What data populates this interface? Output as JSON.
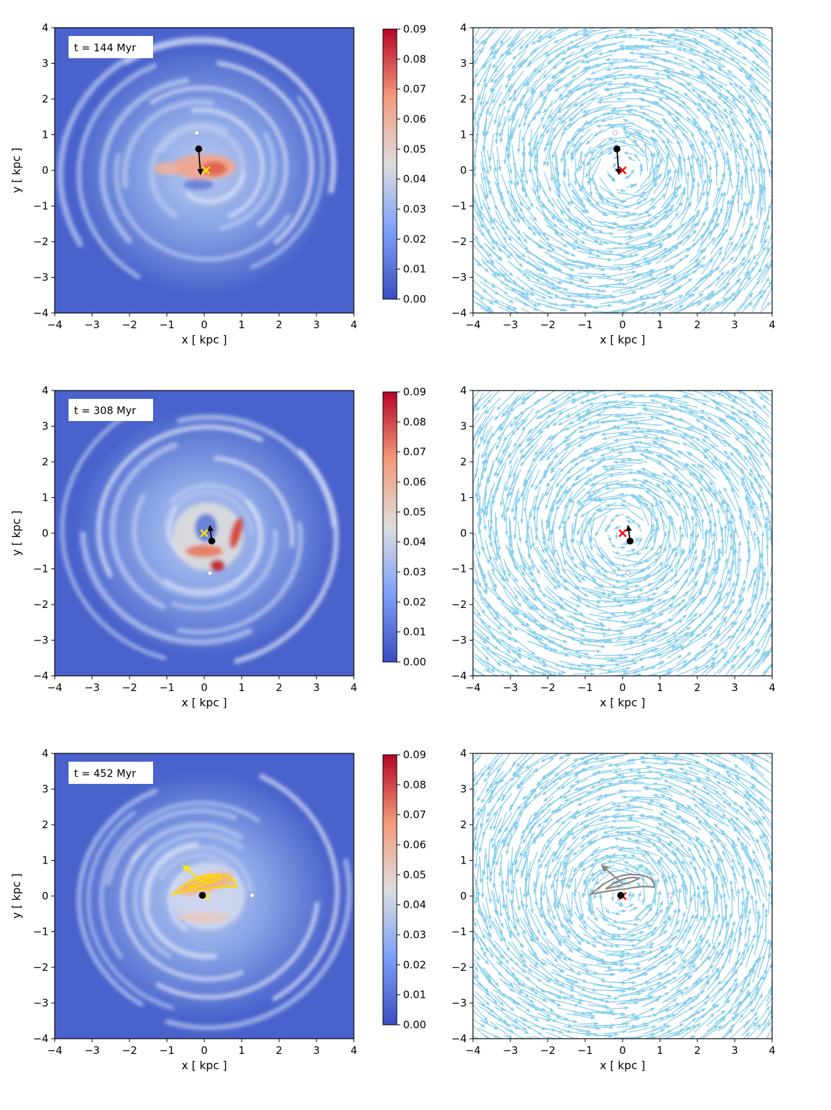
{
  "figure": {
    "rows": 3,
    "columns": 2
  },
  "colors": {
    "quiver": "#87ceeb",
    "cmap_low": "#3b4cc0",
    "cmap_mid": "#dddddd",
    "cmap_high": "#b40426",
    "frame": "#000000",
    "current_position": "#000000",
    "previous_position_marker": "#ffffff",
    "left_target_marker": "#ffe600",
    "right_target_marker": "#ff0000",
    "contour_left": "#ffd700",
    "contour_right": "#888888"
  },
  "axis_labels": {
    "x": "x [ kpc ]",
    "y": "y [ kpc ]"
  },
  "colorbar": {
    "range": [
      0.0,
      0.09
    ],
    "ticks": [
      "0.00",
      "0.01",
      "0.02",
      "0.03",
      "0.04",
      "0.05",
      "0.06",
      "0.07",
      "0.08",
      "0.09"
    ]
  },
  "chart_data": [
    {
      "type": "heatmap",
      "panel": "row 1 left",
      "annotation": "t = 144 Myr",
      "xlabel": "x [ kpc ]",
      "ylabel": "y [ kpc ]",
      "xlim": [
        -4,
        4
      ],
      "ylim": [
        -4,
        4
      ],
      "xticks": [
        "−4",
        "−3",
        "−2",
        "−1",
        "0",
        "1",
        "2",
        "3",
        "4"
      ],
      "yticks": [
        "−4",
        "−3",
        "−2",
        "−1",
        "0",
        "1",
        "2",
        "3",
        "4"
      ],
      "center": [
        -0.15,
        0.6
      ],
      "previous_center": [
        -0.2,
        1.05
      ],
      "target": [
        0.05,
        0.0
      ],
      "vector": [
        0.05,
        -0.7
      ],
      "colorbar_range": [
        0.0,
        0.09
      ],
      "spiral_sense": 1
    },
    {
      "type": "quiver",
      "panel": "row 1 right",
      "xlabel": "x [ kpc ]",
      "xlim": [
        -4,
        4
      ],
      "ylim": [
        -4,
        4
      ],
      "xticks": [
        "−4",
        "−3",
        "−2",
        "−1",
        "0",
        "1",
        "2",
        "3",
        "4"
      ],
      "yticks": [
        "−4",
        "−3",
        "−2",
        "−1",
        "0",
        "1",
        "2",
        "3",
        "4"
      ],
      "center": [
        -0.15,
        0.6
      ],
      "previous_center": [
        -0.2,
        1.05
      ],
      "target": [
        0.0,
        0.0
      ],
      "vector": [
        0.05,
        -0.7
      ],
      "rotation": "counter-clockwise"
    },
    {
      "type": "heatmap",
      "panel": "row 2 left",
      "annotation": "t = 308 Myr",
      "xlabel": "x [ kpc ]",
      "ylabel": "y [ kpc ]",
      "xlim": [
        -4,
        4
      ],
      "ylim": [
        -4,
        4
      ],
      "xticks": [
        "−4",
        "−3",
        "−2",
        "−1",
        "0",
        "1",
        "2",
        "3",
        "4"
      ],
      "yticks": [
        "−4",
        "−3",
        "−2",
        "−1",
        "0",
        "1",
        "2",
        "3",
        "4"
      ],
      "center": [
        0.2,
        -0.22
      ],
      "previous_center": [
        0.15,
        -1.12
      ],
      "target": [
        0.0,
        0.0
      ],
      "vector": [
        -0.05,
        0.42
      ],
      "colorbar_range": [
        0.0,
        0.09
      ],
      "spiral_sense": -1
    },
    {
      "type": "quiver",
      "panel": "row 2 right",
      "xlabel": "x [ kpc ]",
      "xlim": [
        -4,
        4
      ],
      "ylim": [
        -4,
        4
      ],
      "xticks": [
        "−4",
        "−3",
        "−2",
        "−1",
        "0",
        "1",
        "2",
        "3",
        "4"
      ],
      "yticks": [
        "−4",
        "−3",
        "−2",
        "−1",
        "0",
        "1",
        "2",
        "3",
        "4"
      ],
      "center": [
        0.2,
        -0.22
      ],
      "previous_center": [
        0.15,
        -1.12
      ],
      "target": [
        0.0,
        0.0
      ],
      "vector": [
        -0.05,
        0.42
      ],
      "rotation": "counter-clockwise"
    },
    {
      "type": "heatmap",
      "panel": "row 3 left",
      "annotation": "t = 452 Myr",
      "xlabel": "x [ kpc ]",
      "ylabel": "y [ kpc ]",
      "xlim": [
        -4,
        4
      ],
      "ylim": [
        -4,
        4
      ],
      "xticks": [
        "−4",
        "−3",
        "−2",
        "−1",
        "0",
        "1",
        "2",
        "3",
        "4"
      ],
      "yticks": [
        "−4",
        "−3",
        "−2",
        "−1",
        "0",
        "1",
        "2",
        "3",
        "4"
      ],
      "center": [
        -0.05,
        0.02
      ],
      "previous_center": [
        1.28,
        0.02
      ],
      "target": [
        0.05,
        0.0
      ],
      "contour_vector": {
        "from": [
          0.0,
          0.35
        ],
        "to": [
          -0.55,
          0.85
        ]
      },
      "colorbar_range": [
        0.0,
        0.09
      ],
      "spiral_sense": 1
    },
    {
      "type": "quiver",
      "panel": "row 3 right",
      "xlabel": "x [ kpc ]",
      "xlim": [
        -4,
        4
      ],
      "ylim": [
        -4,
        4
      ],
      "xticks": [
        "−4",
        "−3",
        "−2",
        "−1",
        "0",
        "1",
        "2",
        "3",
        "4"
      ],
      "yticks": [
        "−4",
        "−3",
        "−2",
        "−1",
        "0",
        "1",
        "2",
        "3",
        "4"
      ],
      "center": [
        -0.05,
        0.02
      ],
      "previous_center": [
        1.28,
        0.02
      ],
      "target": [
        0.0,
        0.0
      ],
      "contour_vector": {
        "from": [
          0.0,
          0.35
        ],
        "to": [
          -0.55,
          0.85
        ]
      },
      "rotation": "counter-clockwise"
    }
  ]
}
